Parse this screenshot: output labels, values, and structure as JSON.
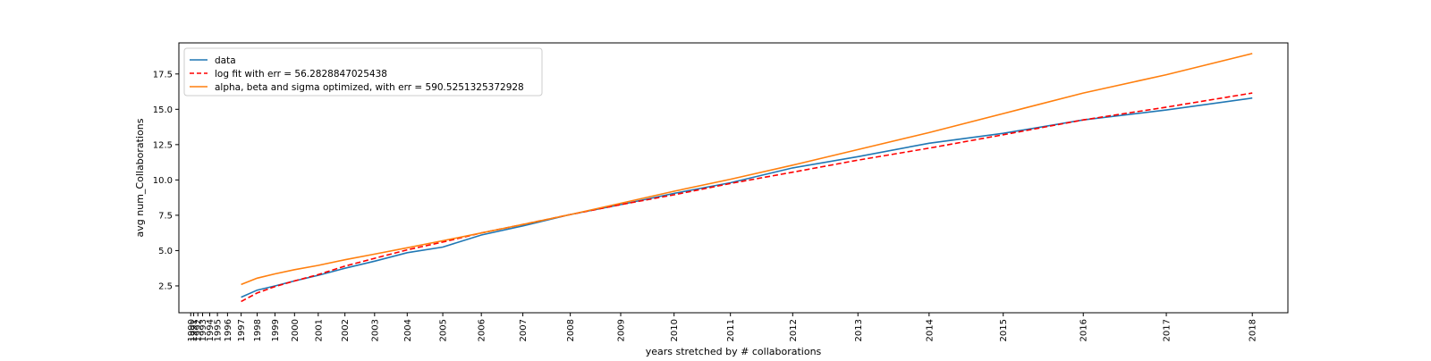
{
  "chart_data": {
    "type": "line",
    "title": "",
    "xlabel": "years stretched by # collaborations",
    "ylabel": "avg num_Collaborations",
    "ylim": [
      0.6,
      19.7
    ],
    "yticks": [
      2.5,
      5.0,
      7.5,
      10.0,
      12.5,
      15.0,
      17.5
    ],
    "ytick_labels": [
      "2.5",
      "5.0",
      "7.5",
      "10.0",
      "12.5",
      "15.0",
      "17.5"
    ],
    "xlim": [
      0.1,
      18.8
    ],
    "xticks": [
      {
        "label": "1990",
        "x": 0.3
      },
      {
        "label": "1991",
        "x": 0.35
      },
      {
        "label": "1992",
        "x": 0.42
      },
      {
        "label": "1993",
        "x": 0.5
      },
      {
        "label": "1994",
        "x": 0.62
      },
      {
        "label": "1995",
        "x": 0.75
      },
      {
        "label": "1996",
        "x": 0.92
      },
      {
        "label": "1997",
        "x": 1.15
      },
      {
        "label": "1998",
        "x": 1.42
      },
      {
        "label": "1999",
        "x": 1.72
      },
      {
        "label": "2000",
        "x": 2.05
      },
      {
        "label": "2001",
        "x": 2.45
      },
      {
        "label": "2002",
        "x": 2.9
      },
      {
        "label": "2003",
        "x": 3.4
      },
      {
        "label": "2004",
        "x": 3.95
      },
      {
        "label": "2005",
        "x": 4.55
      },
      {
        "label": "2006",
        "x": 5.2
      },
      {
        "label": "2007",
        "x": 5.9
      },
      {
        "label": "2008",
        "x": 6.7
      },
      {
        "label": "2009",
        "x": 7.55
      },
      {
        "label": "2010",
        "x": 8.45
      },
      {
        "label": "2011",
        "x": 9.4
      },
      {
        "label": "2012",
        "x": 10.45
      },
      {
        "label": "2013",
        "x": 11.55
      },
      {
        "label": "2014",
        "x": 12.75
      },
      {
        "label": "2015",
        "x": 14.0
      },
      {
        "label": "2016",
        "x": 15.35
      },
      {
        "label": "2017",
        "x": 16.75
      },
      {
        "label": "2018",
        "x": 18.2
      }
    ],
    "series": [
      {
        "name": "data",
        "color": "#1f77b4",
        "dash": "solid",
        "x": [
          1.15,
          1.42,
          1.72,
          2.05,
          2.45,
          2.9,
          3.4,
          3.95,
          4.55,
          5.2,
          5.9,
          6.7,
          7.55,
          8.45,
          9.4,
          10.45,
          11.55,
          12.75,
          14.0,
          15.35,
          16.75,
          18.2
        ],
        "y": [
          1.7,
          2.2,
          2.5,
          2.85,
          3.25,
          3.75,
          4.25,
          4.85,
          5.25,
          6.1,
          6.75,
          7.55,
          8.25,
          9.05,
          9.8,
          10.85,
          11.65,
          12.6,
          13.3,
          14.25,
          14.95,
          15.8
        ]
      },
      {
        "name": "log fit with err = 56.2828847025438",
        "color": "#ff0000",
        "dash": "dashed",
        "x": [
          1.15,
          1.42,
          1.72,
          2.05,
          2.45,
          2.9,
          3.4,
          3.95,
          4.55,
          5.2,
          5.9,
          6.7,
          7.55,
          8.45,
          9.4,
          10.45,
          11.55,
          12.75,
          14.0,
          15.35,
          16.75,
          18.2
        ],
        "y": [
          1.4,
          2.0,
          2.45,
          2.85,
          3.3,
          3.9,
          4.45,
          5.05,
          5.6,
          6.25,
          6.85,
          7.55,
          8.25,
          8.95,
          9.75,
          10.55,
          11.4,
          12.25,
          13.2,
          14.25,
          15.15,
          16.15
        ]
      },
      {
        "name": "alpha, beta and sigma optimized, with err = 590.5251325372928",
        "color": "#ff7f0e",
        "dash": "solid",
        "x": [
          1.15,
          1.42,
          1.72,
          2.05,
          2.45,
          2.9,
          3.4,
          3.95,
          4.55,
          5.2,
          5.9,
          6.7,
          7.55,
          8.45,
          9.4,
          10.45,
          11.55,
          12.75,
          14.0,
          15.35,
          16.75,
          18.2
        ],
        "y": [
          2.6,
          3.05,
          3.35,
          3.65,
          3.95,
          4.35,
          4.75,
          5.2,
          5.7,
          6.25,
          6.85,
          7.55,
          8.35,
          9.2,
          10.05,
          11.05,
          12.15,
          13.35,
          14.7,
          16.15,
          17.45,
          18.95
        ]
      }
    ],
    "legend_position": "upper-left",
    "grid": false
  }
}
